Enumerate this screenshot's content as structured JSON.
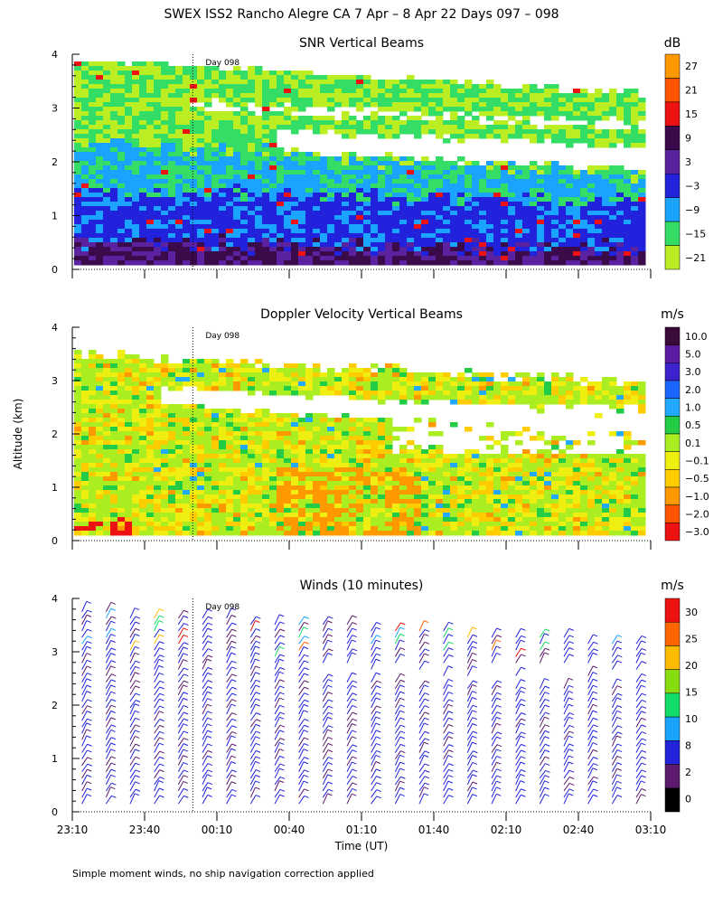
{
  "header": {
    "title": "SWEX ISS2 Rancho Alegre CA   7 Apr –  8 Apr 22 Days 097 – 098"
  },
  "shared": {
    "ylabel": "Altitude (km)",
    "xlabel": "Time (UT)",
    "day_marker": "Day 098",
    "time_ticks": [
      "23:10",
      "23:40",
      "00:10",
      "00:40",
      "01:10",
      "01:40",
      "02:10",
      "02:40",
      "03:10"
    ],
    "footnote": "Simple moment winds, no ship navigation correction applied"
  },
  "colors": {
    "missing": "#ffffff",
    "grid_dots": "#000000"
  },
  "chart_data": [
    {
      "type": "heatmap",
      "title": "SNR Vertical Beams",
      "unit": "dB",
      "ylim": [
        0,
        4
      ],
      "yticks": [
        "0",
        "1",
        "2",
        "3",
        "4"
      ],
      "x_time_range": [
        "23:10",
        "03:10"
      ],
      "day_boundary_time": "00:00",
      "colorbar": {
        "labels": [
          "27",
          "21",
          "15",
          "9",
          "3",
          "−3",
          "−9",
          "−15",
          "−21"
        ],
        "colors": [
          "#ff9900",
          "#ff5500",
          "#ee1111",
          "#3a0a4a",
          "#5b22a0",
          "#2222dd",
          "#1aa3ff",
          "#33dd66",
          "#bbee22"
        ]
      },
      "layers": [
        {
          "alt_from": 0.15,
          "alt_to": 0.6,
          "band": "very high SNR (dark purple)"
        },
        {
          "alt_from": 0.6,
          "alt_to": 1.6,
          "band": "high SNR (blue)"
        },
        {
          "alt_from": 1.6,
          "alt_to": 2.5,
          "band": "moderate SNR (cyan/green)"
        },
        {
          "alt_from": 2.5,
          "alt_to": 4.0,
          "band": "low SNR (green/yellow-green)"
        }
      ]
    },
    {
      "type": "heatmap",
      "title": "Doppler Velocity Vertical Beams",
      "unit": "m/s",
      "ylim": [
        0,
        4
      ],
      "yticks": [
        "0",
        "1",
        "2",
        "3",
        "4"
      ],
      "x_time_range": [
        "23:10",
        "03:10"
      ],
      "colorbar": {
        "labels": [
          "10.0",
          "5.0",
          "3.0",
          "2.0",
          "1.0",
          "0.5",
          "0.1",
          "−0.1",
          "−0.5",
          "−1.0",
          "−2.0",
          "−3.0"
        ],
        "colors": [
          "#3a0a3a",
          "#5b1aa0",
          "#3b22cc",
          "#1a66ff",
          "#22aaff",
          "#22cc44",
          "#aaee22",
          "#eeee11",
          "#ffcc00",
          "#ff9900",
          "#ff5500",
          "#ee1111"
        ]
      },
      "dominant_values": "near zero, mostly -0.5 to 0.5 m/s"
    },
    {
      "type": "scatter",
      "subtype": "wind-barbs",
      "title": "Winds (10 minutes)",
      "unit": "m/s",
      "ylim": [
        0,
        4
      ],
      "yticks": [
        "0",
        "1",
        "2",
        "3",
        "4"
      ],
      "x_time_range": [
        "23:10",
        "03:10"
      ],
      "profile_interval_minutes": 10,
      "colorbar": {
        "labels": [
          "30",
          "25",
          "20",
          "15",
          "10",
          "8",
          "2",
          "0"
        ],
        "colors": [
          "#ee1111",
          "#ff6600",
          "#ffbb00",
          "#88dd11",
          "#11dd66",
          "#1aa3ff",
          "#2222dd",
          "#5b1a6b",
          "#000000"
        ]
      },
      "typical_speed": "2–8 m/s (blue/purple), up to ~30 m/s aloft"
    }
  ]
}
